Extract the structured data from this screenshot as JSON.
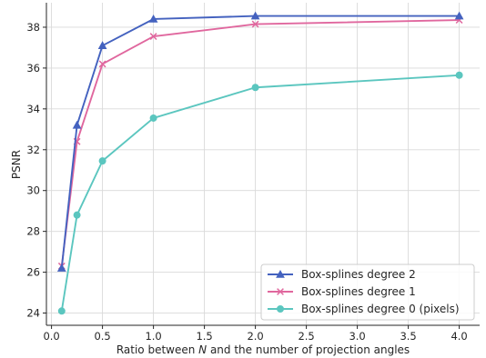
{
  "chart_data": {
    "type": "line",
    "title": "",
    "xlabel_parts": [
      "Ratio between ",
      "N",
      " and the number of projection angles"
    ],
    "ylabel": "PSNR",
    "xlim": [
      -0.05,
      4.2
    ],
    "ylim": [
      23.4,
      39.2
    ],
    "xticks": [
      0.0,
      0.5,
      1.0,
      1.5,
      2.0,
      2.5,
      3.0,
      3.5,
      4.0
    ],
    "xtick_labels": [
      "0.0",
      "0.5",
      "1.0",
      "1.5",
      "2.0",
      "2.5",
      "3.0",
      "3.5",
      "4.0"
    ],
    "yticks": [
      24,
      26,
      28,
      30,
      32,
      34,
      36,
      38
    ],
    "ytick_labels": [
      "24",
      "26",
      "28",
      "30",
      "32",
      "34",
      "36",
      "38"
    ],
    "grid": true,
    "legend_position": "bottom-right",
    "series": [
      {
        "name": "Box-splines degree 2",
        "color": "#4462bf",
        "marker": "triangle",
        "x": [
          0.1,
          0.25,
          0.5,
          1.0,
          2.0,
          4.0
        ],
        "y": [
          26.2,
          33.2,
          37.1,
          38.4,
          38.55,
          38.55
        ]
      },
      {
        "name": "Box-splines degree 1",
        "color": "#e0679e",
        "marker": "x",
        "x": [
          0.1,
          0.25,
          0.5,
          1.0,
          2.0,
          4.0
        ],
        "y": [
          26.3,
          32.4,
          36.2,
          37.55,
          38.15,
          38.35
        ]
      },
      {
        "name": "Box-splines degree 0 (pixels)",
        "color": "#5bc6bf",
        "marker": "circle",
        "x": [
          0.1,
          0.25,
          0.5,
          1.0,
          2.0,
          4.0
        ],
        "y": [
          24.1,
          28.8,
          31.45,
          33.55,
          35.05,
          35.65
        ]
      }
    ]
  }
}
